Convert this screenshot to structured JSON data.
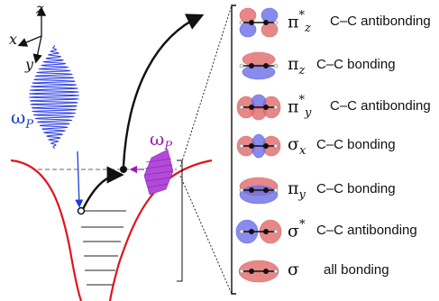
{
  "axes": {
    "z": "z",
    "x": "x",
    "y": "y"
  },
  "pump": {
    "symbol": "ω",
    "sub": "P",
    "color": "#9b1fb3"
  },
  "probe": {
    "symbol": "ω",
    "sub": "P",
    "color": "#1a3fd6"
  },
  "colors": {
    "potential": "#e0141b",
    "pulse_blue": "#2a3ee0",
    "pulse_purple": "#9b2fcf",
    "lobe_red": "#e06a6a",
    "lobe_blue": "#6a6ee6",
    "axis": "#111111"
  },
  "orbitals": [
    {
      "sym": "π",
      "sub": "z",
      "sup": "*",
      "desc": "C–C antibonding",
      "icon": "pi-star-z-orbital-icon"
    },
    {
      "sym": "π",
      "sub": "z",
      "sup": "",
      "desc": "C–C bonding",
      "icon": "pi-z-orbital-icon"
    },
    {
      "sym": "π",
      "sub": "y",
      "sup": "*",
      "desc": "C–C antibonding",
      "icon": "pi-star-y-orbital-icon"
    },
    {
      "sym": "σ",
      "sub": "x",
      "sup": "",
      "desc": "C–C bonding",
      "icon": "sigma-x-orbital-icon"
    },
    {
      "sym": "π",
      "sub": "y",
      "sup": "",
      "desc": "C–C bonding",
      "icon": "pi-y-orbital-icon"
    },
    {
      "sym": "σ",
      "sub": "",
      "sup": "*",
      "desc": "C–C antibonding",
      "icon": "sigma-star-orbital-icon"
    },
    {
      "sym": "σ",
      "sub": "",
      "sup": "",
      "desc": "all bonding",
      "icon": "sigma-orbital-icon"
    }
  ]
}
